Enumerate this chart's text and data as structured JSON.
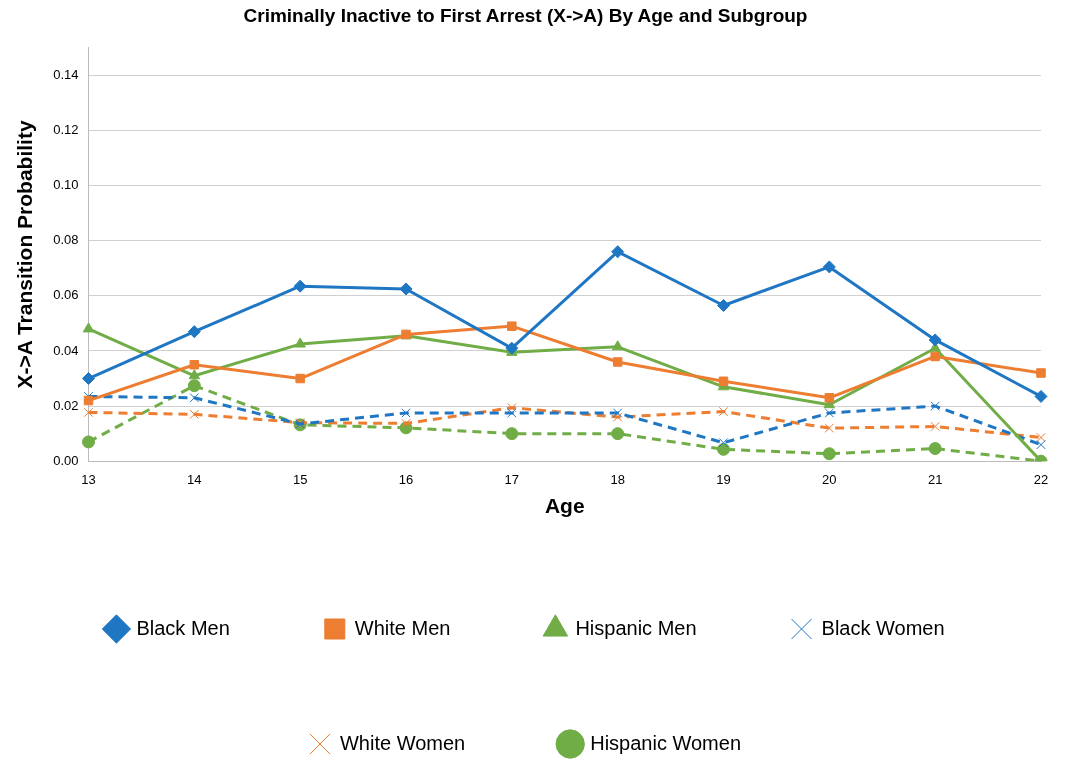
{
  "chart_data": {
    "type": "line",
    "title": "Criminally Inactive to First Arrest (X->A) By Age and Subgroup",
    "xlabel": "Age",
    "ylabel": "X->A Transition Probability",
    "categories": [
      "13",
      "14",
      "15",
      "16",
      "17",
      "18",
      "19",
      "20",
      "21",
      "22"
    ],
    "series": [
      {
        "name": "Black Men",
        "color": "#1f77c4",
        "marker": "diamond",
        "line_style": "solid",
        "values": [
          0.03,
          0.047,
          0.0635,
          0.0625,
          0.041,
          0.076,
          0.0565,
          0.0705,
          0.044,
          0.0235
        ]
      },
      {
        "name": "White Men",
        "color": "#ed7d31",
        "marker": "square",
        "line_style": "solid",
        "values": [
          0.022,
          0.035,
          0.03,
          0.046,
          0.049,
          0.036,
          0.029,
          0.023,
          0.038,
          0.032
        ]
      },
      {
        "name": "Hispanic Men",
        "color": "#70ad47",
        "marker": "triangle",
        "line_style": "solid",
        "values": [
          0.048,
          0.031,
          0.0425,
          0.0455,
          0.0395,
          0.0415,
          0.027,
          0.0205,
          0.041,
          0.0
        ]
      },
      {
        "name": "Black Women",
        "color": "#1f77c4",
        "marker": "cross",
        "line_style": "dashed",
        "values": [
          0.0235,
          0.023,
          0.0135,
          0.0175,
          0.0175,
          0.0175,
          0.0067,
          0.0175,
          0.02,
          0.006
        ]
      },
      {
        "name": "White Women",
        "color": "#ed7d31",
        "marker": "cross",
        "line_style": "dashed",
        "values": [
          0.0177,
          0.017,
          0.014,
          0.0137,
          0.0194,
          0.016,
          0.018,
          0.012,
          0.0126,
          0.0086
        ]
      },
      {
        "name": "Hispanic Women",
        "color": "#70ad47",
        "marker": "circle",
        "line_style": "dashed",
        "values": [
          0.007,
          0.0274,
          0.0132,
          0.0121,
          0.01,
          0.01,
          0.0043,
          0.0027,
          0.0046,
          0.0
        ]
      }
    ],
    "ylim": [
      0,
      0.15
    ],
    "yticks": [
      {
        "value": 0,
        "label": "0.00"
      },
      0.02,
      0.04,
      0.06,
      0.08,
      {
        "value": 0.1,
        "label": "0.10"
      },
      0.12,
      0.14
    ],
    "grid": "y",
    "legend": "bottom"
  }
}
